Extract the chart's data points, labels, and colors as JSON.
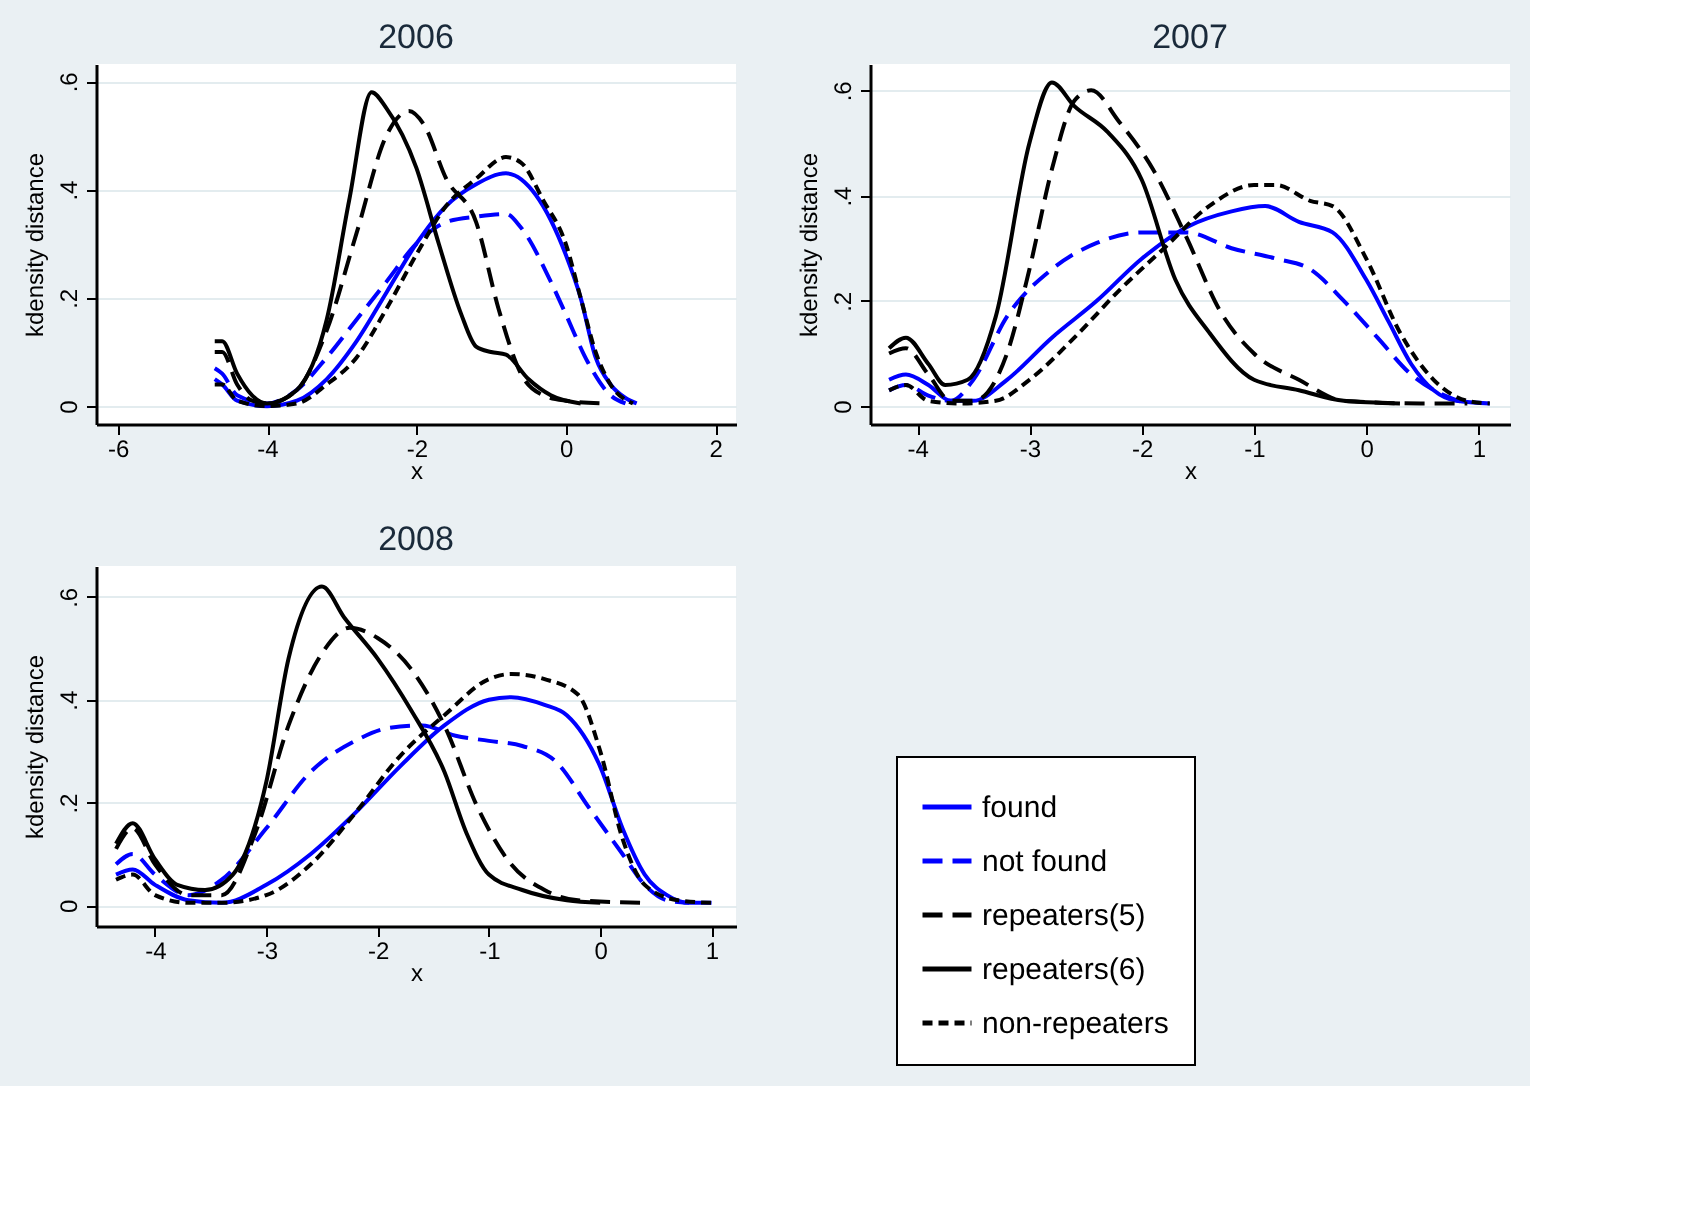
{
  "chart_data": [
    {
      "type": "line",
      "title": "2006",
      "xlabel": "x",
      "ylabel": "kdensity distance",
      "xlim": [
        -6.29,
        2.28
      ],
      "xticks": [
        -6,
        -4,
        -2,
        0,
        2
      ],
      "ylim": [
        -0.033,
        0.632
      ],
      "yticks": [
        0,
        {
          "value": 0.2,
          "label": ".2"
        },
        {
          "value": 0.4,
          "label": ".4"
        },
        {
          "value": 0.6,
          "label": ".6"
        }
      ],
      "grid": "y",
      "legend": false,
      "series": [
        {
          "color": "#0000ff",
          "line_style": "solid",
          "x": [
            -4.7,
            -4.6,
            -4.4,
            -4.0,
            -3.6,
            -3.2,
            -2.8,
            -2.4,
            -2.0,
            -1.6,
            -1.2,
            -0.8,
            -0.4,
            0,
            0.2,
            0.4,
            0.6,
            0.8,
            0.95
          ],
          "values": [
            0.05,
            0.04,
            0.01,
            0.0,
            0.01,
            0.05,
            0.12,
            0.21,
            0.3,
            0.37,
            0.41,
            0.43,
            0.39,
            0.28,
            0.2,
            0.09,
            0.04,
            0.015,
            0.005
          ]
        },
        {
          "color": "#0000ff",
          "line_style": "dashed",
          "x": [
            -4.7,
            -4.6,
            -4.4,
            -4.0,
            -3.6,
            -3.2,
            -2.8,
            -2.4,
            -2.0,
            -1.6,
            -1.2,
            -0.8,
            -0.6,
            -0.2,
            0,
            0.3,
            0.6,
            0.8
          ],
          "values": [
            0.07,
            0.06,
            0.02,
            0.005,
            0.03,
            0.09,
            0.16,
            0.23,
            0.3,
            0.34,
            0.35,
            0.355,
            0.33,
            0.23,
            0.17,
            0.08,
            0.02,
            0.005
          ]
        },
        {
          "color": "#000000",
          "line_style": "dashed",
          "x": [
            -4.7,
            -4.6,
            -4.4,
            -4.2,
            -4.0,
            -3.6,
            -3.2,
            -2.8,
            -2.4,
            -2.1,
            -1.9,
            -1.6,
            -1.2,
            -0.9,
            -0.6,
            -0.3,
            0,
            0.5
          ],
          "values": [
            0.1,
            0.1,
            0.04,
            0.01,
            0.005,
            0.03,
            0.14,
            0.32,
            0.5,
            0.545,
            0.52,
            0.42,
            0.34,
            0.18,
            0.06,
            0.02,
            0.01,
            0.005
          ]
        },
        {
          "color": "#000000",
          "line_style": "solid",
          "x": [
            -4.7,
            -4.6,
            -4.4,
            -4.2,
            -4.0,
            -3.6,
            -3.2,
            -2.9,
            -2.6,
            -2.4,
            -2.0,
            -1.7,
            -1.4,
            -1.2,
            -1.0,
            -0.8,
            -0.5,
            -0.2,
            0.2
          ],
          "values": [
            0.12,
            0.12,
            0.06,
            0.02,
            0.005,
            0.03,
            0.16,
            0.38,
            0.58,
            0.55,
            0.44,
            0.3,
            0.17,
            0.11,
            0.1,
            0.095,
            0.05,
            0.02,
            0.005
          ]
        },
        {
          "color": "#000000",
          "line_style": "dotted",
          "x": [
            -4.7,
            -4.6,
            -4.4,
            -4.0,
            -3.6,
            -3.2,
            -2.8,
            -2.4,
            -2.0,
            -1.6,
            -1.2,
            -0.8,
            -0.6,
            -0.3,
            0,
            0.2,
            0.4,
            0.6,
            0.9
          ],
          "values": [
            0.04,
            0.04,
            0.01,
            0.0,
            0.005,
            0.04,
            0.09,
            0.18,
            0.28,
            0.37,
            0.42,
            0.46,
            0.45,
            0.38,
            0.3,
            0.2,
            0.1,
            0.04,
            0.005
          ]
        }
      ]
    },
    {
      "type": "line",
      "title": "2007",
      "xlabel": "x",
      "ylabel": "kdensity distance",
      "xlim": [
        -4.42,
        1.28
      ],
      "xticks": [
        -4,
        -3,
        -2,
        -1,
        0,
        1
      ],
      "ylim": [
        -0.034,
        0.65
      ],
      "yticks": [
        0,
        {
          "value": 0.2,
          "label": ".2"
        },
        {
          "value": 0.4,
          "label": ".4"
        },
        {
          "value": 0.6,
          "label": ".6"
        }
      ],
      "grid": "y",
      "legend": false,
      "series": [
        {
          "color": "#0000ff",
          "line_style": "solid",
          "x": [
            -4.25,
            -4.1,
            -3.9,
            -3.7,
            -3.5,
            -3.2,
            -2.8,
            -2.4,
            -2.0,
            -1.6,
            -1.2,
            -0.9,
            -0.6,
            -0.3,
            0,
            0.2,
            0.4,
            0.6,
            0.8,
            1.1
          ],
          "values": [
            0.05,
            0.06,
            0.04,
            0.01,
            0.01,
            0.05,
            0.13,
            0.2,
            0.28,
            0.34,
            0.37,
            0.38,
            0.35,
            0.33,
            0.24,
            0.16,
            0.08,
            0.03,
            0.01,
            0.005
          ]
        },
        {
          "color": "#0000ff",
          "line_style": "dashed",
          "x": [
            -4.25,
            -4.1,
            -3.9,
            -3.7,
            -3.5,
            -3.2,
            -2.8,
            -2.4,
            -2.0,
            -1.6,
            -1.2,
            -0.8,
            -0.5,
            -0.2,
            0.1,
            0.4,
            0.7,
            0.9
          ],
          "values": [
            0.03,
            0.04,
            0.02,
            0.01,
            0.05,
            0.17,
            0.26,
            0.31,
            0.33,
            0.33,
            0.3,
            0.28,
            0.26,
            0.2,
            0.13,
            0.06,
            0.02,
            0.005
          ]
        },
        {
          "color": "#000000",
          "line_style": "dashed",
          "x": [
            -4.25,
            -4.1,
            -3.9,
            -3.7,
            -3.5,
            -3.2,
            -3.0,
            -2.8,
            -2.6,
            -2.45,
            -2.2,
            -1.9,
            -1.6,
            -1.3,
            -1.0,
            -0.6,
            -0.2,
            0.5,
            0.9
          ],
          "values": [
            0.1,
            0.11,
            0.06,
            0.01,
            0.01,
            0.1,
            0.26,
            0.45,
            0.58,
            0.6,
            0.54,
            0.45,
            0.32,
            0.18,
            0.1,
            0.05,
            0.01,
            0.005,
            0.005
          ]
        },
        {
          "color": "#000000",
          "line_style": "solid",
          "x": [
            -4.25,
            -4.1,
            -3.9,
            -3.75,
            -3.55,
            -3.3,
            -3.0,
            -2.8,
            -2.6,
            -2.3,
            -2.0,
            -1.7,
            -1.4,
            -1.0,
            -0.6,
            -0.2,
            0.3
          ],
          "values": [
            0.11,
            0.13,
            0.08,
            0.04,
            0.05,
            0.17,
            0.5,
            0.615,
            0.57,
            0.52,
            0.43,
            0.24,
            0.14,
            0.05,
            0.03,
            0.01,
            0.005
          ]
        },
        {
          "color": "#000000",
          "line_style": "dotted",
          "x": [
            -4.25,
            -4.1,
            -3.9,
            -3.6,
            -3.3,
            -3.0,
            -2.6,
            -2.2,
            -1.8,
            -1.4,
            -1.0,
            -0.8,
            -0.5,
            -0.3,
            0,
            0.3,
            0.6,
            0.9,
            1.1
          ],
          "values": [
            0.03,
            0.04,
            0.01,
            0.005,
            0.01,
            0.05,
            0.13,
            0.22,
            0.3,
            0.38,
            0.42,
            0.42,
            0.39,
            0.38,
            0.28,
            0.14,
            0.05,
            0.01,
            0.005
          ]
        }
      ]
    },
    {
      "type": "line",
      "title": "2008",
      "xlabel": "x",
      "ylabel": "kdensity distance",
      "xlim": [
        -4.53,
        1.22
      ],
      "xticks": [
        -4,
        -3,
        -2,
        -1,
        0,
        1
      ],
      "ylim": [
        -0.04,
        0.66
      ],
      "yticks": [
        0,
        {
          "value": 0.2,
          "label": ".2"
        },
        {
          "value": 0.4,
          "label": ".4"
        },
        {
          "value": 0.6,
          "label": ".6"
        }
      ],
      "grid": "y",
      "legend": "right",
      "series": [
        {
          "name": "found",
          "color": "#0000ff",
          "line_style": "solid",
          "x": [
            -4.35,
            -4.2,
            -4.0,
            -3.7,
            -3.4,
            -3.0,
            -2.6,
            -2.2,
            -1.8,
            -1.4,
            -1.0,
            -0.8,
            -0.5,
            -0.3,
            0,
            0.2,
            0.4,
            0.6,
            0.8,
            1.0
          ],
          "values": [
            0.06,
            0.07,
            0.04,
            0.01,
            0.005,
            0.04,
            0.1,
            0.18,
            0.27,
            0.35,
            0.4,
            0.405,
            0.39,
            0.37,
            0.27,
            0.15,
            0.06,
            0.02,
            0.005,
            0.005
          ]
        },
        {
          "name": "not found",
          "color": "#0000ff",
          "line_style": "dashed",
          "x": [
            -4.35,
            -4.2,
            -4.0,
            -3.7,
            -3.4,
            -3.0,
            -2.6,
            -2.2,
            -1.9,
            -1.6,
            -1.3,
            -1.0,
            -0.7,
            -0.4,
            -0.1,
            0.2,
            0.4,
            0.6,
            0.8
          ],
          "values": [
            0.08,
            0.1,
            0.06,
            0.02,
            0.05,
            0.15,
            0.26,
            0.32,
            0.345,
            0.35,
            0.33,
            0.32,
            0.31,
            0.28,
            0.19,
            0.1,
            0.04,
            0.01,
            0.005
          ]
        },
        {
          "name": "repeaters(5)",
          "color": "#000000",
          "line_style": "dashed",
          "x": [
            -4.35,
            -4.2,
            -4.0,
            -3.7,
            -3.4,
            -3.1,
            -2.8,
            -2.5,
            -2.25,
            -2.0,
            -1.7,
            -1.4,
            -1.1,
            -0.8,
            -0.5,
            -0.2,
            0.4
          ],
          "values": [
            0.11,
            0.15,
            0.08,
            0.02,
            0.02,
            0.14,
            0.35,
            0.49,
            0.54,
            0.52,
            0.46,
            0.35,
            0.19,
            0.08,
            0.03,
            0.01,
            0.005
          ]
        },
        {
          "name": "repeaters(6)",
          "color": "#000000",
          "line_style": "solid",
          "x": [
            -4.35,
            -4.2,
            -4.0,
            -3.8,
            -3.55,
            -3.3,
            -3.0,
            -2.8,
            -2.5,
            -2.3,
            -2.0,
            -1.7,
            -1.4,
            -1.2,
            -1.0,
            -0.7,
            -0.3,
            0
          ],
          "values": [
            0.12,
            0.16,
            0.09,
            0.04,
            0.03,
            0.06,
            0.24,
            0.48,
            0.62,
            0.56,
            0.48,
            0.38,
            0.26,
            0.14,
            0.06,
            0.03,
            0.01,
            0.005
          ]
        },
        {
          "name": "non-repeaters",
          "color": "#000000",
          "line_style": "dotted",
          "x": [
            -4.35,
            -4.2,
            -4.0,
            -3.7,
            -3.4,
            -3.0,
            -2.6,
            -2.2,
            -1.8,
            -1.4,
            -1.0,
            -0.8,
            -0.5,
            -0.2,
            0,
            0.2,
            0.4,
            0.7,
            1.0
          ],
          "values": [
            0.05,
            0.06,
            0.02,
            0.005,
            0.005,
            0.02,
            0.08,
            0.18,
            0.29,
            0.37,
            0.44,
            0.45,
            0.44,
            0.41,
            0.3,
            0.13,
            0.04,
            0.01,
            0.005
          ]
        }
      ]
    }
  ]
}
